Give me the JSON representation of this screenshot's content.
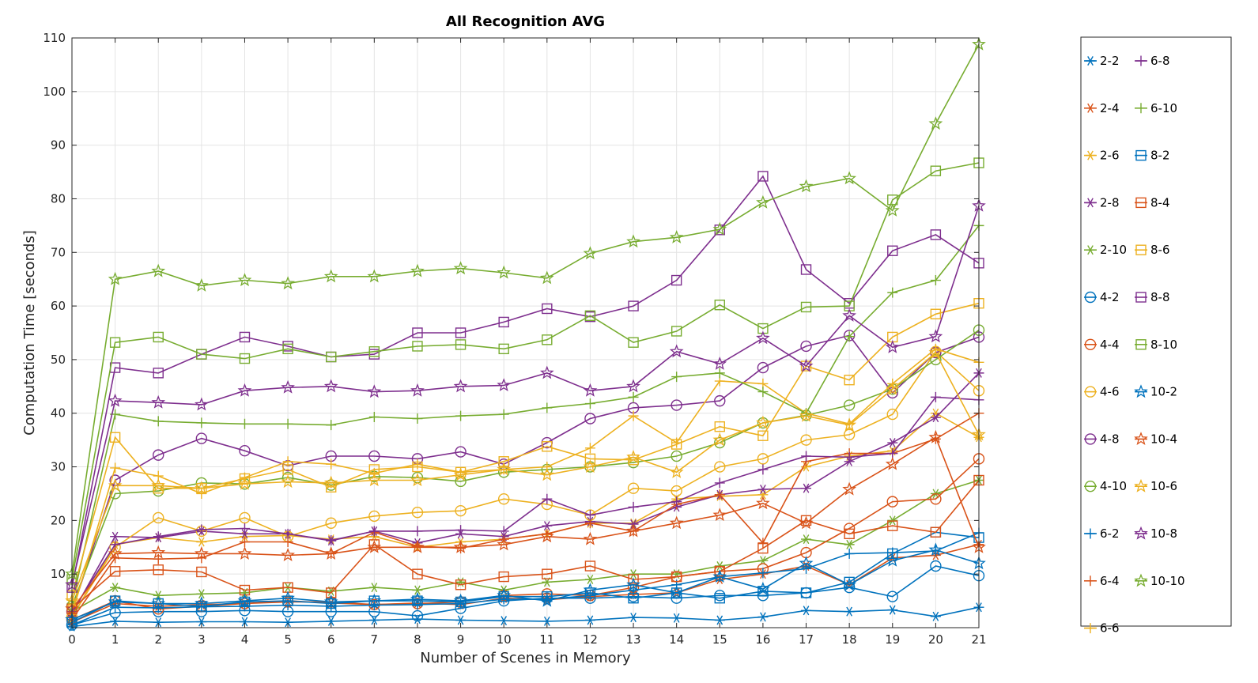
{
  "chart_data": {
    "type": "line",
    "title": "All Recognition AVG",
    "xlabel": "Number of Scenes in Memory",
    "ylabel": "Computation Time [seconds]",
    "xlim": [
      0,
      21
    ],
    "ylim": [
      0,
      110
    ],
    "x": [
      0,
      1,
      2,
      3,
      4,
      5,
      6,
      7,
      8,
      9,
      10,
      11,
      12,
      13,
      14,
      15,
      16,
      17,
      18,
      19,
      20,
      21
    ],
    "xticks": [
      "0",
      "1",
      "2",
      "3",
      "4",
      "5",
      "6",
      "7",
      "8",
      "9",
      "10",
      "11",
      "12",
      "13",
      "14",
      "15",
      "16",
      "17",
      "18",
      "19",
      "20",
      "21"
    ],
    "yticks": [
      "10",
      "20",
      "30",
      "40",
      "50",
      "60",
      "70",
      "80",
      "90",
      "100",
      "110"
    ],
    "grid": true,
    "legend_position": "outside-right",
    "series": [
      {
        "name": "2-2",
        "color": "#0072BD",
        "marker": "asterisk",
        "values": [
          0.2,
          1.2,
          1.0,
          1.1,
          1.1,
          1.0,
          1.2,
          1.4,
          1.6,
          1.4,
          1.3,
          1.2,
          1.4,
          1.9,
          1.8,
          1.4,
          2.0,
          3.2,
          3.0,
          3.3,
          2.1,
          3.8
        ]
      },
      {
        "name": "2-4",
        "color": "#D95319",
        "marker": "asterisk",
        "values": [
          1.0,
          4.5,
          4.0,
          4.3,
          4.5,
          5.0,
          4.6,
          4.3,
          4.6,
          4.3,
          5.5,
          5.2,
          5.8,
          6.2,
          6.5,
          9.0,
          10.0,
          11.5,
          8.0,
          13.0,
          13.5,
          15.5
        ]
      },
      {
        "name": "2-6",
        "color": "#EDB120",
        "marker": "asterisk",
        "values": [
          2.0,
          15.5,
          16.8,
          16.0,
          17.0,
          17.2,
          16.5,
          17.0,
          15.0,
          16.0,
          16.5,
          17.5,
          19.5,
          19.5,
          24.0,
          24.5,
          24.8,
          30.0,
          32.0,
          33.0,
          40.0,
          35.5
        ]
      },
      {
        "name": "2-8",
        "color": "#7E2F8E",
        "marker": "asterisk",
        "values": [
          2.5,
          17.0,
          16.8,
          18.0,
          17.5,
          17.5,
          16.2,
          18.0,
          15.8,
          17.5,
          17.0,
          19.0,
          19.8,
          19.3,
          22.5,
          24.8,
          25.8,
          26.0,
          31.0,
          34.5,
          39.2,
          47.5
        ]
      },
      {
        "name": "2-10",
        "color": "#77AC30",
        "marker": "asterisk",
        "values": [
          3.0,
          7.5,
          6.0,
          6.3,
          6.5,
          7.5,
          6.8,
          7.5,
          7.0,
          8.5,
          7.0,
          8.5,
          9.0,
          10.0,
          10.0,
          11.5,
          12.5,
          16.5,
          15.5,
          20.0,
          25.0,
          27.5
        ]
      },
      {
        "name": "4-2",
        "color": "#0072BD",
        "marker": "circle",
        "values": [
          0.5,
          2.8,
          3.0,
          3.0,
          3.2,
          3.0,
          3.0,
          3.0,
          2.2,
          3.6,
          5.0,
          5.5,
          5.5,
          5.8,
          5.5,
          6.0,
          6.0,
          6.5,
          7.5,
          5.8,
          11.5,
          9.7
        ]
      },
      {
        "name": "4-4",
        "color": "#D95319",
        "marker": "circle",
        "values": [
          1.5,
          5.0,
          3.5,
          4.0,
          4.5,
          4.8,
          4.8,
          4.3,
          4.5,
          4.8,
          6.0,
          6.3,
          6.0,
          7.5,
          9.5,
          10.5,
          11.0,
          14.0,
          18.5,
          23.5,
          24.0,
          31.5
        ]
      },
      {
        "name": "4-6",
        "color": "#EDB120",
        "marker": "circle",
        "values": [
          2.0,
          15.0,
          20.5,
          18.0,
          20.5,
          17.0,
          19.5,
          20.8,
          21.5,
          21.8,
          24.0,
          23.0,
          21.0,
          26.0,
          25.5,
          30.0,
          31.5,
          35.0,
          36.0,
          39.8,
          51.5,
          44.2
        ]
      },
      {
        "name": "4-8",
        "color": "#7E2F8E",
        "marker": "circle",
        "values": [
          3.0,
          27.5,
          32.2,
          35.3,
          33.0,
          30.2,
          32.0,
          32.0,
          31.5,
          32.8,
          30.5,
          34.5,
          39.0,
          41.0,
          41.5,
          42.3,
          48.5,
          52.5,
          54.5,
          43.8,
          51.3,
          54.2
        ]
      },
      {
        "name": "4-10",
        "color": "#77AC30",
        "marker": "circle",
        "values": [
          4.0,
          25.0,
          25.5,
          27.0,
          26.8,
          28.0,
          26.6,
          28.2,
          28.0,
          27.3,
          29.0,
          29.5,
          30.0,
          30.8,
          32.0,
          34.5,
          38.2,
          39.6,
          41.5,
          44.5,
          50.0,
          55.5
        ]
      },
      {
        "name": "6-2",
        "color": "#0072BD",
        "marker": "plus",
        "values": [
          0.5,
          3.8,
          3.7,
          3.9,
          4.0,
          4.2,
          4.0,
          4.2,
          4.3,
          4.5,
          5.3,
          5.3,
          6.0,
          7.0,
          8.0,
          9.5,
          10.2,
          11.0,
          13.8,
          14.0,
          14.3,
          17.7
        ]
      },
      {
        "name": "6-4",
        "color": "#D95319",
        "marker": "plus",
        "values": [
          1.5,
          13.0,
          12.8,
          13.0,
          16.0,
          16.0,
          13.8,
          17.8,
          15.2,
          14.8,
          16.5,
          17.5,
          19.5,
          18.0,
          23.0,
          24.8,
          15.8,
          31.0,
          32.5,
          32.5,
          35.2,
          40.0
        ]
      },
      {
        "name": "6-6",
        "color": "#EDB120",
        "marker": "plus",
        "values": [
          2.5,
          29.8,
          28.3,
          25.0,
          28.0,
          31.0,
          30.5,
          28.8,
          30.5,
          29.0,
          29.5,
          30.0,
          33.5,
          39.5,
          34.5,
          46.0,
          45.5,
          40.0,
          38.0,
          45.5,
          52.0,
          49.5
        ]
      },
      {
        "name": "6-8",
        "color": "#7E2F8E",
        "marker": "plus",
        "values": [
          3.0,
          15.5,
          17.0,
          18.3,
          18.5,
          17.5,
          16.3,
          18.0,
          18.0,
          18.2,
          18.0,
          24.0,
          21.0,
          22.5,
          23.5,
          27.0,
          29.5,
          32.0,
          31.8,
          32.5,
          43.0,
          42.5
        ]
      },
      {
        "name": "6-10",
        "color": "#77AC30",
        "marker": "plus",
        "values": [
          4.5,
          39.8,
          38.5,
          38.2,
          38.0,
          38.0,
          37.8,
          39.3,
          39.0,
          39.5,
          39.8,
          41.0,
          41.8,
          43.0,
          46.8,
          47.5,
          44.0,
          40.0,
          54.3,
          62.5,
          64.8,
          75.0
        ]
      },
      {
        "name": "8-2",
        "color": "#0072BD",
        "marker": "square",
        "values": [
          1.0,
          5.0,
          4.5,
          4.0,
          4.8,
          5.0,
          4.5,
          5.0,
          5.0,
          4.8,
          5.8,
          5.8,
          6.5,
          5.5,
          6.5,
          5.5,
          6.8,
          6.5,
          8.5,
          13.8,
          17.8,
          16.8
        ]
      },
      {
        "name": "8-4",
        "color": "#D95319",
        "marker": "square",
        "values": [
          3.5,
          10.5,
          10.8,
          10.4,
          7.0,
          7.5,
          6.5,
          15.5,
          10.0,
          8.0,
          9.5,
          10.0,
          11.5,
          9.0,
          9.5,
          10.5,
          14.8,
          20.0,
          17.5,
          19.0,
          17.8,
          27.5
        ]
      },
      {
        "name": "8-6",
        "color": "#EDB120",
        "marker": "square",
        "values": [
          6.0,
          35.5,
          26.0,
          26.0,
          27.8,
          29.5,
          26.2,
          29.5,
          30.0,
          29.0,
          31.0,
          33.8,
          31.5,
          31.3,
          34.2,
          37.5,
          35.8,
          48.8,
          46.2,
          54.2,
          58.5,
          60.5
        ]
      },
      {
        "name": "8-8",
        "color": "#7E2F8E",
        "marker": "square",
        "values": [
          7.5,
          48.5,
          47.5,
          51.0,
          54.2,
          52.5,
          50.5,
          51.0,
          55.0,
          55.0,
          57.0,
          59.5,
          58.0,
          60.0,
          64.8,
          74.2,
          84.2,
          66.8,
          60.5,
          70.3,
          73.3,
          68.0
        ]
      },
      {
        "name": "8-10",
        "color": "#77AC30",
        "marker": "square",
        "values": [
          9.0,
          53.2,
          54.2,
          51.0,
          50.2,
          52.0,
          50.5,
          51.5,
          52.5,
          52.8,
          52.0,
          53.7,
          58.2,
          53.2,
          55.3,
          60.2,
          55.8,
          59.8,
          60.0,
          79.8,
          85.2,
          86.7
        ]
      },
      {
        "name": "10-2",
        "color": "#0072BD",
        "marker": "pentagram",
        "values": [
          1.5,
          4.8,
          4.5,
          4.5,
          5.0,
          5.5,
          4.8,
          5.0,
          5.3,
          5.0,
          6.0,
          5.0,
          7.0,
          8.0,
          6.5,
          9.5,
          7.2,
          12.0,
          8.0,
          12.5,
          14.5,
          12.0
        ]
      },
      {
        "name": "10-4",
        "color": "#D95319",
        "marker": "pentagram",
        "values": [
          3.5,
          13.8,
          14.0,
          13.8,
          13.8,
          13.5,
          13.8,
          15.0,
          15.0,
          15.0,
          15.5,
          17.0,
          16.5,
          18.0,
          19.5,
          21.0,
          23.2,
          19.5,
          25.8,
          30.5,
          35.5,
          15.0
        ]
      },
      {
        "name": "10-6",
        "color": "#EDB120",
        "marker": "pentagram",
        "values": [
          5.0,
          26.5,
          26.5,
          26.0,
          26.8,
          27.2,
          27.0,
          27.5,
          27.5,
          28.5,
          29.5,
          28.5,
          30.0,
          31.8,
          29.0,
          35.0,
          38.2,
          39.5,
          37.8,
          44.5,
          51.3,
          36.0
        ]
      },
      {
        "name": "10-8",
        "color": "#7E2F8E",
        "marker": "pentagram",
        "values": [
          8.0,
          42.3,
          42.0,
          41.6,
          44.2,
          44.8,
          45.0,
          44.0,
          44.2,
          45.0,
          45.2,
          47.5,
          44.2,
          45.0,
          51.5,
          49.2,
          54.0,
          48.8,
          58.2,
          52.3,
          54.3,
          78.7
        ]
      },
      {
        "name": "10-10",
        "color": "#77AC30",
        "marker": "pentagram",
        "values": [
          10.0,
          65.0,
          66.5,
          63.8,
          64.8,
          64.2,
          65.5,
          65.5,
          66.5,
          67.0,
          66.2,
          65.2,
          69.8,
          72.0,
          72.8,
          74.3,
          79.3,
          82.3,
          83.8,
          77.8,
          94.0,
          108.8
        ]
      }
    ]
  }
}
